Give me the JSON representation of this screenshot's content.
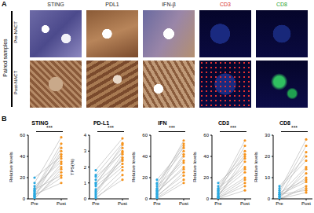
{
  "panel_labels": [
    "A",
    "B"
  ],
  "panel_a": {
    "row_group": "Paired samples",
    "rows": [
      "Pre-NACT",
      "Post-NACT"
    ],
    "columns": [
      "STING",
      "PDL1",
      "IFN-β",
      "CD3",
      "CD8"
    ],
    "column_colors": [
      "#222222",
      "#222222",
      "#222222",
      "#d62728",
      "#2ca02c"
    ]
  },
  "chart_data": [
    {
      "type": "line",
      "title": "STING",
      "y_label": "Relative levels",
      "categories": [
        "Pre",
        "Post"
      ],
      "colors": [
        "#29a8e0",
        "#f7941d"
      ],
      "color": "#b0b0b0",
      "marker": "circle",
      "annotation": "***",
      "ylim": [
        0,
        60
      ],
      "yticks": [
        0,
        20,
        40,
        60
      ],
      "pairs": [
        [
          2,
          45
        ],
        [
          5,
          30
        ],
        [
          8,
          52
        ],
        [
          3,
          20
        ],
        [
          10,
          38
        ],
        [
          1,
          25
        ],
        [
          15,
          58
        ],
        [
          4,
          15
        ],
        [
          6,
          42
        ],
        [
          12,
          35
        ],
        [
          0,
          28
        ],
        [
          7,
          48
        ],
        [
          20,
          40
        ],
        [
          3,
          33
        ],
        [
          9,
          22
        ]
      ]
    },
    {
      "type": "line",
      "title": "PD-L1",
      "y_label": "TPS(%)",
      "categories": [
        "Pre",
        "Post"
      ],
      "colors": [
        "#29a8e0",
        "#f7941d"
      ],
      "color": "#b0b0b0",
      "marker": "circle",
      "annotation": "***",
      "ylim": [
        0,
        4
      ],
      "yticks": [
        0,
        1,
        2,
        3,
        4
      ],
      "pairs": [
        [
          0.5,
          2.5
        ],
        [
          1,
          3
        ],
        [
          0.2,
          1.8
        ],
        [
          1.5,
          3.5
        ],
        [
          0.8,
          2.2
        ],
        [
          0,
          1.5
        ],
        [
          1.2,
          3.2
        ],
        [
          0.4,
          2.8
        ],
        [
          1.8,
          3.8
        ],
        [
          0.6,
          2
        ],
        [
          0.3,
          2.6
        ],
        [
          1,
          2.4
        ],
        [
          0.9,
          3.4
        ],
        [
          0.1,
          1.2
        ],
        [
          1.4,
          2.9
        ]
      ]
    },
    {
      "type": "line",
      "title": "IFN",
      "y_label": "Relative levels",
      "categories": [
        "Pre",
        "Post"
      ],
      "colors": [
        "#29a8e0",
        "#f7941d"
      ],
      "color": "#b0b0b0",
      "marker": "circle",
      "annotation": "***",
      "ylim": [
        0,
        60
      ],
      "yticks": [
        0,
        20,
        40,
        60
      ],
      "pairs": [
        [
          4,
          40
        ],
        [
          10,
          55
        ],
        [
          2,
          25
        ],
        [
          15,
          45
        ],
        [
          6,
          30
        ],
        [
          8,
          50
        ],
        [
          1,
          18
        ],
        [
          12,
          36
        ],
        [
          5,
          42
        ],
        [
          18,
          48
        ],
        [
          3,
          22
        ],
        [
          9,
          34
        ],
        [
          7,
          28
        ],
        [
          14,
          52
        ],
        [
          0,
          15
        ]
      ]
    },
    {
      "type": "line",
      "title": "CD3",
      "y_label": "Relative levels",
      "categories": [
        "Pre",
        "Post"
      ],
      "colors": [
        "#29a8e0",
        "#f7941d"
      ],
      "color": "#b0b0b0",
      "marker": "circle",
      "annotation": "***",
      "ylim": [
        0,
        60
      ],
      "yticks": [
        0,
        20,
        40,
        60
      ],
      "pairs": [
        [
          3,
          35
        ],
        [
          8,
          55
        ],
        [
          1,
          12
        ],
        [
          12,
          45
        ],
        [
          5,
          25
        ],
        [
          2,
          40
        ],
        [
          10,
          30
        ],
        [
          0,
          8
        ],
        [
          6,
          50
        ],
        [
          4,
          20
        ],
        [
          15,
          38
        ],
        [
          7,
          28
        ],
        [
          2,
          18
        ],
        [
          9,
          42
        ],
        [
          1,
          15
        ]
      ]
    },
    {
      "type": "line",
      "title": "CD8",
      "y_label": "Relative levels",
      "categories": [
        "Pre",
        "Post"
      ],
      "colors": [
        "#29a8e0",
        "#f7941d"
      ],
      "color": "#b0b0b0",
      "marker": "circle",
      "annotation": "***",
      "ylim": [
        0,
        30
      ],
      "yticks": [
        0,
        10,
        20,
        30
      ],
      "pairs": [
        [
          1,
          12
        ],
        [
          3,
          25
        ],
        [
          0,
          5
        ],
        [
          5,
          18
        ],
        [
          2,
          8
        ],
        [
          0,
          3
        ],
        [
          4,
          28
        ],
        [
          1,
          10
        ],
        [
          2,
          15
        ],
        [
          6,
          20
        ],
        [
          0,
          6
        ],
        [
          3,
          9
        ],
        [
          1,
          22
        ],
        [
          2,
          4
        ],
        [
          0,
          14
        ]
      ]
    }
  ]
}
